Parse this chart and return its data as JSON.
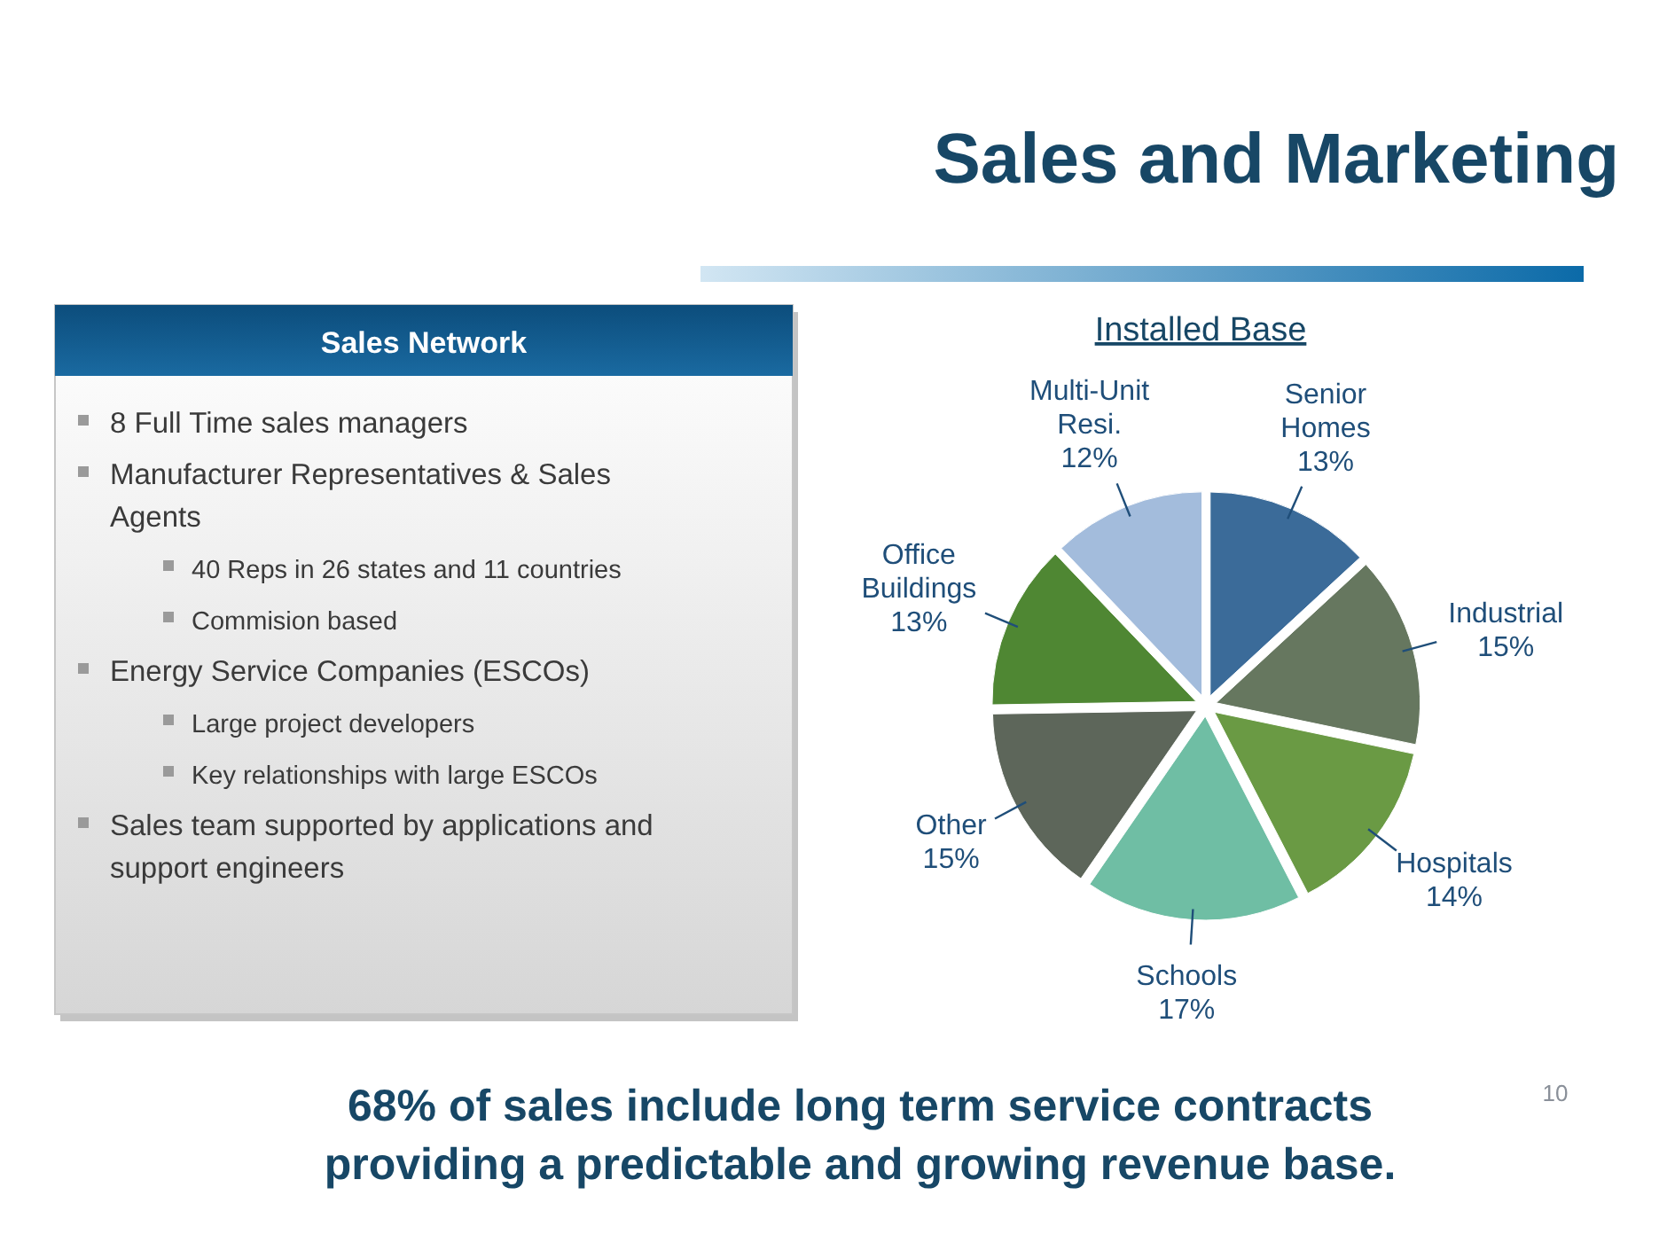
{
  "chart_data": [
    {
      "type": "other",
      "title": "Sales and Marketing"
    },
    {
      "type": "other",
      "title": "Sales Network",
      "annotations": [
        "8 Full Time sales managers",
        "Manufacturer Representatives & Sales Agents",
        "40 Reps in 26 states and 11 countries",
        "Commision based",
        "Energy Service Companies (ESCOs)",
        "Large project developers",
        "Key relationships with large ESCOs",
        "Sales team supported by applications and support engineers"
      ]
    },
    {
      "type": "pie",
      "title": "Installed Base",
      "categories": [
        "Senior Homes",
        "Industrial",
        "Hospitals",
        "Schools",
        "Other",
        "Office Buildings",
        "Multi-Unit Resi."
      ],
      "values": [
        13,
        15,
        14,
        17,
        15,
        13,
        12
      ],
      "colors": [
        "#3b6b99",
        "#66775f",
        "#6a9a44",
        "#6fbea4",
        "#5d665a",
        "#4f8733",
        "#a3bcdc"
      ],
      "value_labels": [
        "13%",
        "15%",
        "14%",
        "17%",
        "15%",
        "13%",
        "12%"
      ],
      "annotations": [
        "68% of sales include long term service contracts providing a predictable and growing revenue base.",
        "10"
      ]
    }
  ]
}
